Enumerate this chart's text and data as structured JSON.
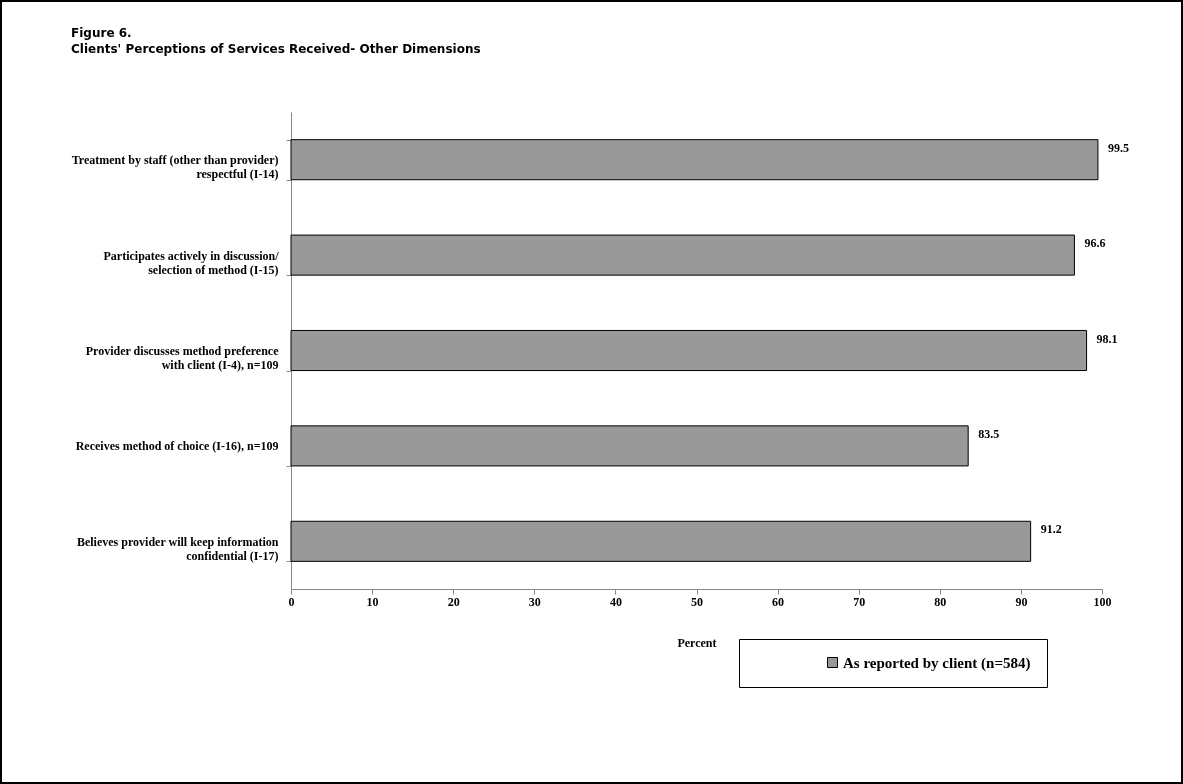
{
  "chart_data": {
    "type": "bar",
    "orientation": "horizontal",
    "title": "Figure 6.",
    "subtitle": "Clients' Perceptions of Services Received- Other Dimensions",
    "xlabel": "Percent",
    "categories": [
      "Treatment by staff (other than provider) respectful (I-14)",
      "Participates actively in discussion/ selection of method (I-15)",
      "Provider discusses method preference with client (I-4), n=109",
      "Receives method of choice (I-16), n=109",
      "Believes provider will keep information confidential (I-17)"
    ],
    "series": [
      {
        "name": "As reported by client (n=584)",
        "color": "#999999",
        "values": [
          99.5,
          96.6,
          98.1,
          83.5,
          91.2
        ]
      }
    ],
    "xlim": [
      0,
      100
    ],
    "xticks": [
      0,
      10,
      20,
      30,
      40,
      50,
      60,
      70,
      80,
      90,
      100
    ],
    "grid": false,
    "legend": "bottom right",
    "data_labels": true
  }
}
